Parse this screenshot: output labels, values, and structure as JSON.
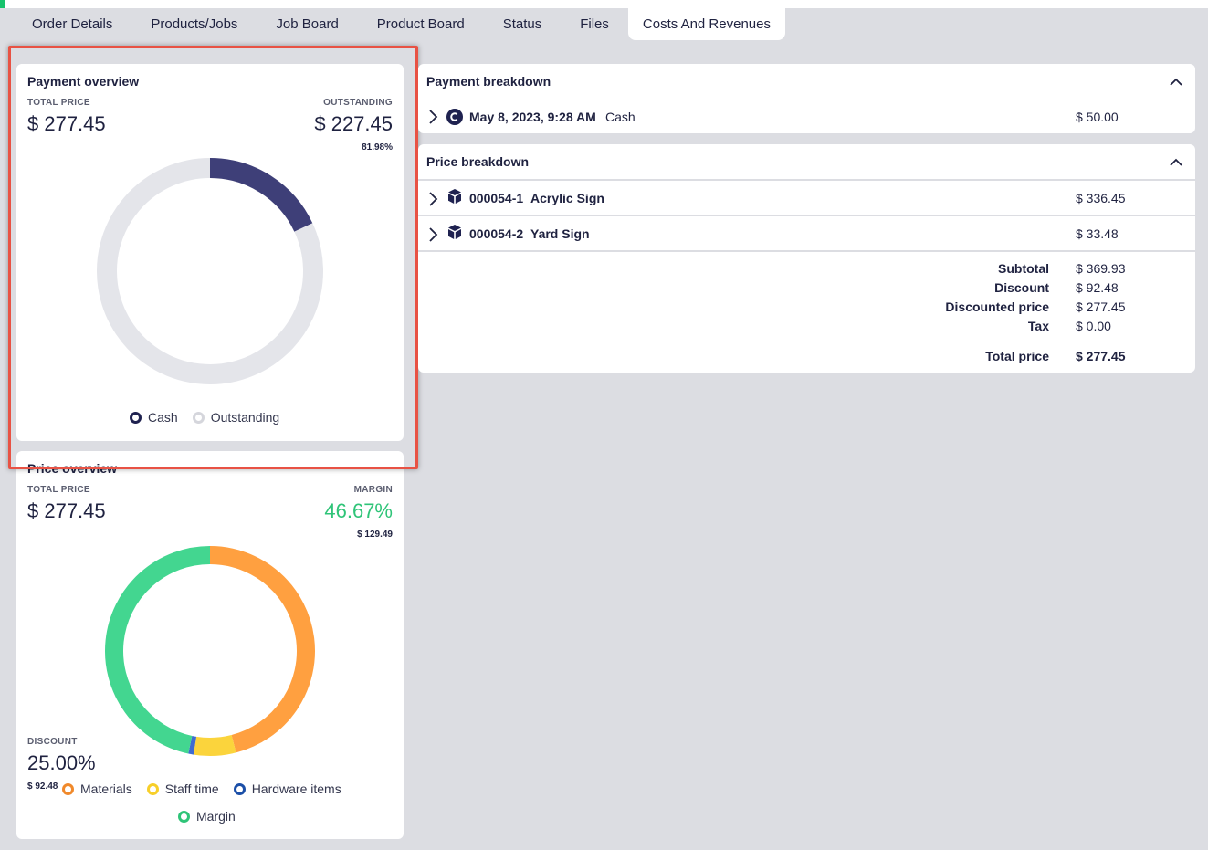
{
  "tabs": [
    {
      "label": "Order Details",
      "active": false
    },
    {
      "label": "Products/Jobs",
      "active": false
    },
    {
      "label": "Job Board",
      "active": false
    },
    {
      "label": "Product Board",
      "active": false
    },
    {
      "label": "Status",
      "active": false
    },
    {
      "label": "Files",
      "active": false
    },
    {
      "label": "Costs And Revenues",
      "active": true
    }
  ],
  "payment_overview": {
    "title": "Payment overview",
    "total_price_label": "TOTAL PRICE",
    "total_price": "$ 277.45",
    "outstanding_label": "OUTSTANDING",
    "outstanding": "$ 227.45",
    "outstanding_pct": "81.98%",
    "legend": [
      {
        "label": "Cash",
        "color": "#1f2250"
      },
      {
        "label": "Outstanding",
        "color": "#d5d6dc"
      }
    ]
  },
  "price_overview": {
    "title": "Price overview",
    "total_price_label": "TOTAL PRICE",
    "total_price": "$ 277.45",
    "margin_label": "MARGIN",
    "margin_pct": "46.67%",
    "margin_value": "$ 129.49",
    "discount_label": "DISCOUNT",
    "discount_pct": "25.00%",
    "discount_value": "$ 92.48",
    "legend": [
      {
        "label": "Materials",
        "color": "#f0892b"
      },
      {
        "label": "Staff time",
        "color": "#f7cf2a"
      },
      {
        "label": "Hardware items",
        "color": "#1b4fa8"
      },
      {
        "label": "Margin",
        "color": "#2fc478"
      }
    ]
  },
  "chart_data": [
    {
      "type": "pie",
      "title": "Payment overview",
      "labels": [
        "Cash",
        "Outstanding"
      ],
      "values": [
        50.0,
        227.45
      ],
      "colors": [
        "#3e3f78",
        "#e4e5ea"
      ]
    },
    {
      "type": "pie",
      "title": "Price overview",
      "labels": [
        "Materials",
        "Staff time",
        "Hardware items",
        "Margin"
      ],
      "values": [
        46.0,
        6.5,
        0.8,
        46.67
      ],
      "colors": [
        "#ffa040",
        "#fbd43c",
        "#3f6bd0",
        "#43d690"
      ]
    }
  ],
  "payment_breakdown": {
    "title": "Payment breakdown",
    "rows": [
      {
        "date": "May 8, 2023, 9:28 AM",
        "method": "Cash",
        "amount": "$ 50.00"
      }
    ]
  },
  "price_breakdown": {
    "title": "Price breakdown",
    "rows": [
      {
        "id": "000054-1",
        "name": "Acrylic Sign",
        "amount": "$ 336.45"
      },
      {
        "id": "000054-2",
        "name": "Yard Sign",
        "amount": "$ 33.48"
      }
    ],
    "totals": [
      {
        "label": "Subtotal",
        "value": "$ 369.93"
      },
      {
        "label": "Discount",
        "value": "$ 92.48"
      },
      {
        "label": "Discounted price",
        "value": "$ 277.45"
      },
      {
        "label": "Tax",
        "value": "$ 0.00"
      }
    ],
    "total_label": "Total price",
    "total_value": "$ 277.45"
  }
}
